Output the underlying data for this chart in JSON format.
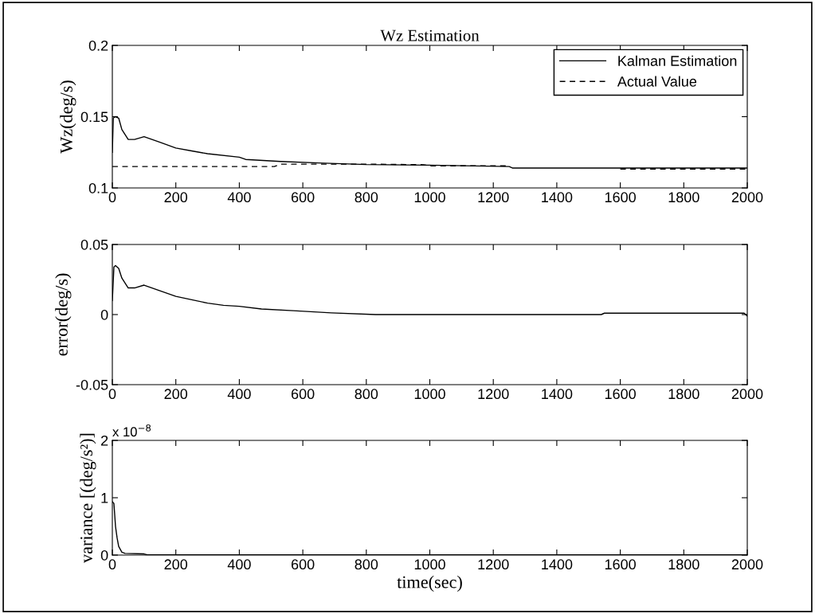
{
  "chart_data": [
    {
      "type": "line",
      "title": "Wz Estimation",
      "ylabel": "Wz(deg/s)",
      "xlim": [
        0,
        2000
      ],
      "xticks": [
        0,
        200,
        400,
        600,
        800,
        1000,
        1200,
        1400,
        1600,
        1800,
        2000
      ],
      "ylim": [
        0.1,
        0.2
      ],
      "yticks": [
        0.1,
        0.15,
        0.2
      ],
      "legend": "top right",
      "series": [
        {
          "name": "Kalman Estimation",
          "color": "#000000",
          "line_style": "solid",
          "x": [
            0,
            3,
            10,
            20,
            30,
            50,
            70,
            100,
            150,
            200,
            250,
            300,
            400,
            420,
            530,
            650,
            800,
            1000,
            1250,
            1260,
            2000
          ],
          "values": [
            0.125,
            0.149,
            0.15,
            0.149,
            0.141,
            0.134,
            0.134,
            0.136,
            0.132,
            0.128,
            0.126,
            0.124,
            0.1216,
            0.12,
            0.1186,
            0.1175,
            0.1164,
            0.116,
            0.115,
            0.114,
            0.114
          ]
        },
        {
          "name": "Actual Value",
          "color": "#000000",
          "line_style": "dashed",
          "x": [
            0,
            510,
            530,
            800,
            980,
            1000,
            1240,
            1260,
            1590,
            1600,
            2000
          ],
          "values": [
            0.115,
            0.115,
            0.1167,
            0.1167,
            0.1163,
            0.1155,
            0.1155,
            null,
            null,
            0.1133,
            0.1133
          ]
        }
      ]
    },
    {
      "type": "line",
      "ylabel": "error(deg/s)",
      "xlim": [
        0,
        2000
      ],
      "xticks": [
        0,
        200,
        400,
        600,
        800,
        1000,
        1200,
        1400,
        1600,
        1800,
        2000
      ],
      "ylim": [
        -0.05,
        0.05
      ],
      "yticks": [
        -0.05,
        0,
        0.05
      ],
      "series": [
        {
          "color": "#000000",
          "line_style": "solid",
          "x": [
            0,
            5,
            10,
            20,
            30,
            50,
            70,
            100,
            150,
            200,
            250,
            300,
            350,
            400,
            470,
            570,
            690,
            830,
            1540,
            1550,
            1990,
            2000
          ],
          "values": [
            0.01,
            0.034,
            0.035,
            0.033,
            0.026,
            0.019,
            0.019,
            0.021,
            0.017,
            0.013,
            0.0106,
            0.0082,
            0.0066,
            0.0059,
            0.004,
            0.0028,
            0.0012,
            0,
            0,
            0.001,
            0.001,
            -0.001
          ]
        }
      ]
    },
    {
      "type": "line",
      "ylabel": "variance [(deg/s²)]",
      "xlabel": "time(sec)",
      "annotations": [
        "x 10$^{−8}$"
      ],
      "xlim": [
        0,
        2000
      ],
      "xticks": [
        0,
        200,
        400,
        600,
        800,
        1000,
        1200,
        1400,
        1600,
        1800,
        2000
      ],
      "ylim": [
        0,
        2
      ],
      "yticks": [
        0,
        1,
        2
      ],
      "series": [
        {
          "color": "#000000",
          "line_style": "solid",
          "x": [
            0,
            5,
            10,
            15,
            20,
            30,
            40,
            100,
            110,
            2000
          ],
          "values": [
            0.93,
            0.9,
            0.5,
            0.3,
            0.15,
            0.05,
            0.03,
            0.02,
            0.005,
            0.005
          ]
        }
      ]
    }
  ]
}
